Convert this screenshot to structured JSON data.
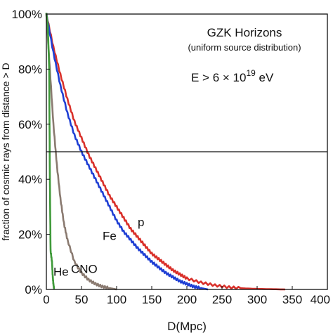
{
  "chart_data": {
    "type": "line",
    "title": "GZK Horizons",
    "subtitle": "(uniform source distribution)",
    "energy_label": {
      "prefix": "E > 6 × 10",
      "exponent": "19",
      "suffix": " eV"
    },
    "xlabel": "D(Mpc)",
    "ylabel": "fraction of cosmic rays from distance > D",
    "xlim": [
      0,
      400
    ],
    "ylim": [
      0,
      100
    ],
    "x_ticks": [
      "0",
      "50",
      "100",
      "150",
      "200",
      "250",
      "300",
      "350",
      "400"
    ],
    "x_tick_values": [
      0,
      50,
      100,
      150,
      200,
      250,
      300,
      350,
      400
    ],
    "y_ticks": [
      "0%",
      "20%",
      "40%",
      "60%",
      "80%",
      "100%"
    ],
    "y_tick_values": [
      0,
      20,
      40,
      60,
      80,
      100
    ],
    "reference_line_y": 50,
    "series": [
      {
        "name": "p",
        "color": "#d9302a",
        "x": [
          0,
          10,
          20,
          30,
          40,
          50,
          60,
          70,
          80,
          90,
          100,
          110,
          120,
          130,
          140,
          150,
          160,
          170,
          180,
          190,
          200,
          220,
          240,
          260,
          280,
          300,
          320,
          340
        ],
        "y": [
          100,
          88,
          78,
          69,
          61,
          55,
          49,
          44,
          39,
          34,
          30,
          26,
          22,
          19,
          16,
          13,
          11,
          9,
          7,
          5.5,
          4,
          2.5,
          1.5,
          0.8,
          0.4,
          0.2,
          0.1,
          0
        ]
      },
      {
        "name": "Fe",
        "color": "#1f3fd4",
        "x": [
          0,
          10,
          20,
          30,
          40,
          50,
          60,
          70,
          80,
          90,
          100,
          110,
          120,
          130,
          140,
          150,
          160,
          170,
          180,
          190,
          200,
          210,
          220,
          230
        ],
        "y": [
          100,
          86,
          74,
          64,
          56,
          50,
          45,
          40,
          35,
          30,
          25,
          21,
          18,
          15,
          12.5,
          10,
          8,
          6,
          4.5,
          3,
          2,
          1,
          0.5,
          0
        ]
      },
      {
        "name": "CNO",
        "color": "#8a7a70",
        "x": [
          0,
          5,
          10,
          15,
          20,
          25,
          30,
          40,
          50,
          60,
          70,
          80,
          90,
          100
        ],
        "y": [
          100,
          80,
          60,
          45,
          33,
          24,
          18,
          10,
          6,
          3.5,
          2,
          1,
          0.5,
          0
        ]
      },
      {
        "name": "He",
        "color": "#3f9a3a",
        "x": [
          0,
          2,
          4,
          5,
          6,
          8,
          9,
          10,
          11
        ],
        "y": [
          100,
          96,
          80,
          40,
          14,
          10,
          5,
          2,
          0
        ]
      }
    ],
    "annotations": [
      {
        "text": "p",
        "series": "p",
        "at": [
          130,
          23
        ]
      },
      {
        "text": "Fe",
        "series": "Fe",
        "at": [
          80,
          18
        ]
      },
      {
        "text": "CNO",
        "series": "CNO",
        "at": [
          35,
          6
        ]
      },
      {
        "text": "He",
        "series": "He",
        "at": [
          10,
          5
        ]
      }
    ],
    "grid": false,
    "legend": "none"
  }
}
